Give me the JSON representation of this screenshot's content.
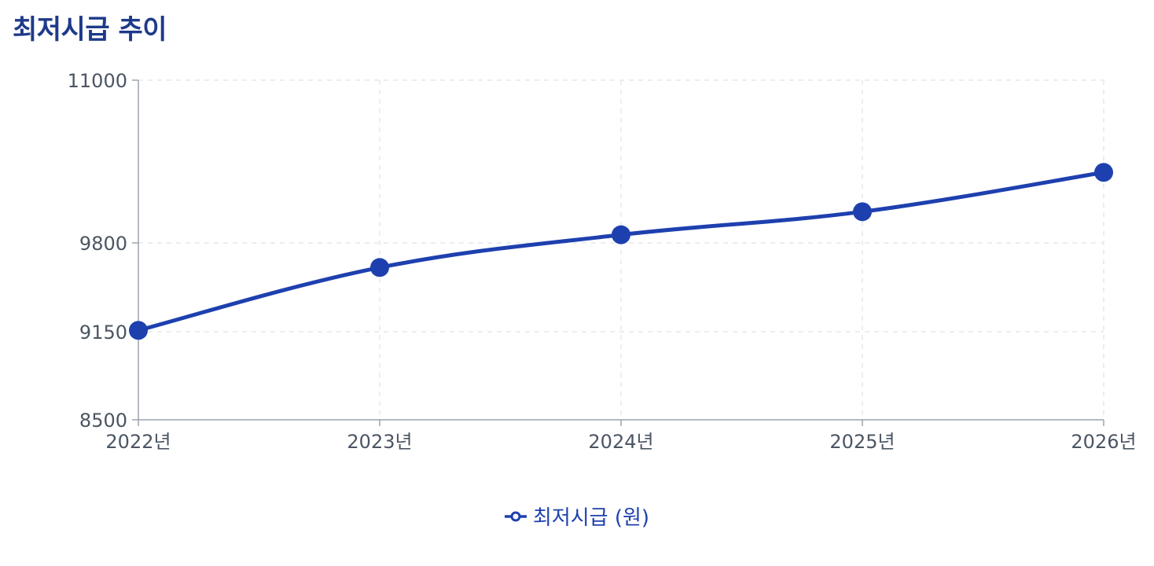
{
  "title": "최저시급 추이",
  "colors": {
    "series": "#1e40af",
    "title": "#1e3a8a",
    "grid": "#e5e7eb",
    "axis": "#9ca3af",
    "tick": "#4b5563"
  },
  "chart_data": {
    "type": "line",
    "title": "최저시급 추이",
    "categories": [
      "2022년",
      "2023년",
      "2024년",
      "2025년",
      "2026년"
    ],
    "series": [
      {
        "name": "최저시급 (원)",
        "values": [
          9160,
          9620,
          9860,
          10030,
          10320
        ]
      }
    ],
    "yticks": [
      8500,
      9150,
      9800,
      11000
    ],
    "ylim": [
      8500,
      11000
    ],
    "grid": true,
    "legend": "bottom-center",
    "xlabel": "",
    "ylabel": ""
  }
}
